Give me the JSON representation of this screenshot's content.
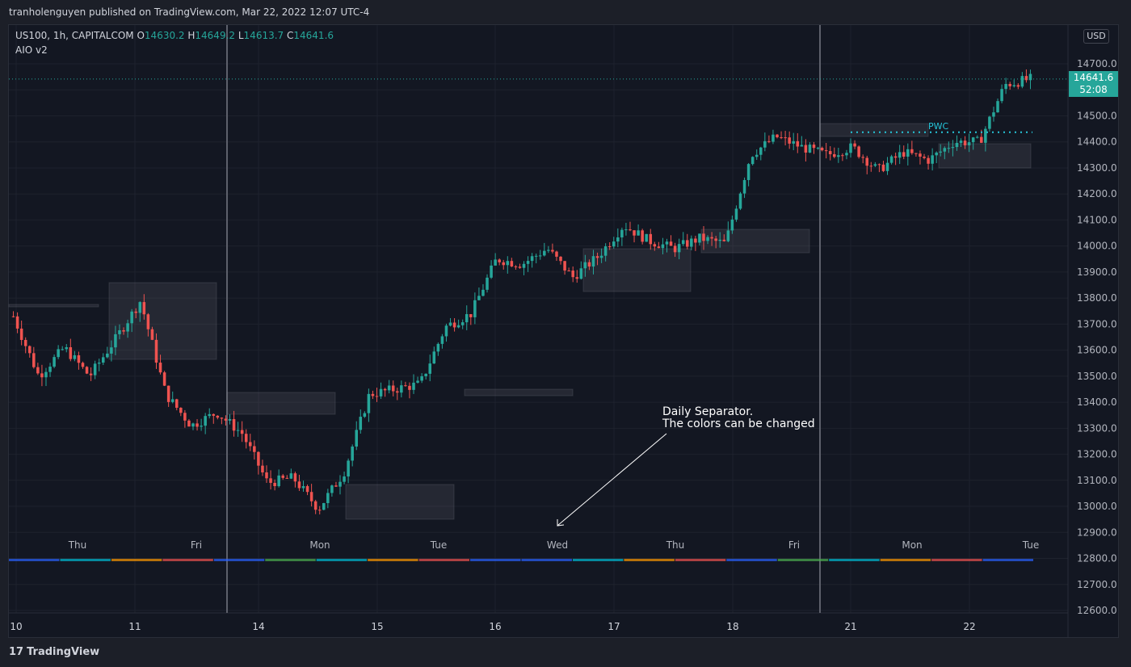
{
  "header": {
    "published_text": "tranholenguyen published on TradingView.com, Mar 22, 2022 12:07 UTC-4"
  },
  "legend": {
    "symbol": "US100, 1h, CAPITALCOM",
    "o_label": "O",
    "o_value": "14630.2",
    "h_label": "H",
    "h_value": "14649.2",
    "l_label": "L",
    "l_value": "14613.7",
    "c_label": "C",
    "c_value": "14641.6",
    "indicator": "AIO v2"
  },
  "toolbar": {
    "currency": "USD"
  },
  "price_tag": {
    "price": "14641.6",
    "countdown": "52:08"
  },
  "annotation": {
    "line1": "Daily Separator.",
    "line2": "The colors can be changed"
  },
  "pwc": {
    "label": "PWC"
  },
  "footer": {
    "brand": "TradingView"
  },
  "colors": {
    "up": "#26a69a",
    "down": "#ef5350",
    "background": "#131722",
    "grid": "#1e222d",
    "pwc": "#26c6da"
  },
  "chart_data": {
    "type": "candlestick",
    "symbol": "US100",
    "interval": "1h",
    "ylim": [
      12560,
      14770
    ],
    "y_ticks": [
      14700.0,
      14600.0,
      14500.0,
      14400.0,
      14300.0,
      14200.0,
      14100.0,
      14000.0,
      13900.0,
      13800.0,
      13700.0,
      13600.0,
      13500.0,
      13400.0,
      13300.0,
      13200.0,
      13100.0,
      13000.0,
      12900.0,
      12800.0,
      12700.0,
      12600.0
    ],
    "x_ticks": [
      "10",
      "11",
      "14",
      "15",
      "16",
      "17",
      "18",
      "21",
      "22"
    ],
    "day_labels": [
      "Thu",
      "Fri",
      "Mon",
      "Tue",
      "Wed",
      "Thu",
      "Fri",
      "Mon",
      "Tue"
    ],
    "last_price": 14641.6,
    "pwc_level": 14437,
    "ohlc_anchors": [
      [
        14735,
        13730
      ],
      [
        14990,
        13500
      ],
      [
        15150,
        13610
      ],
      [
        15310,
        13500
      ],
      [
        15470,
        13640
      ],
      [
        15640,
        13790
      ],
      [
        15760,
        13430
      ],
      [
        15860,
        13310
      ],
      [
        16050,
        13360
      ],
      [
        16200,
        13280
      ],
      [
        16340,
        13090
      ],
      [
        16520,
        13110
      ],
      [
        16620,
        12990
      ],
      [
        16760,
        13130
      ],
      [
        16940,
        13430
      ],
      [
        17130,
        13450
      ],
      [
        17320,
        13470
      ],
      [
        17440,
        13690
      ],
      [
        17640,
        13740
      ],
      [
        17790,
        13950
      ],
      [
        17970,
        13930
      ],
      [
        18140,
        13990
      ],
      [
        18280,
        13880
      ],
      [
        18400,
        13960
      ],
      [
        18470,
        14080
      ],
      [
        18560,
        14020
      ],
      [
        18700,
        13990
      ],
      [
        18900,
        14030
      ],
      [
        19050,
        14010
      ],
      [
        19170,
        14350
      ],
      [
        19260,
        14420
      ],
      [
        19380,
        14380
      ],
      [
        19540,
        14350
      ],
      [
        19700,
        14380
      ],
      [
        19860,
        14290
      ],
      [
        20020,
        14360
      ],
      [
        20200,
        14330
      ],
      [
        20360,
        14400
      ],
      [
        20530,
        14400
      ],
      [
        20620,
        14620
      ],
      [
        20660,
        14641.6
      ]
    ]
  }
}
